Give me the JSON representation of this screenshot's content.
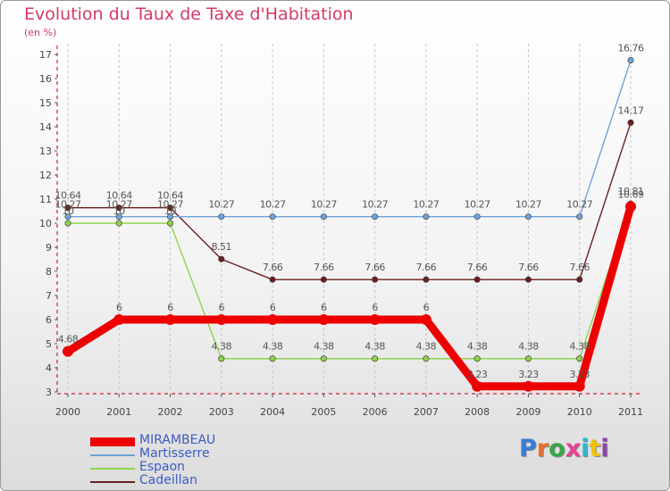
{
  "title": "Evolution du Taux de Taxe d'Habitation",
  "unit": "(en %)",
  "logo_text": "Proxiti",
  "chart_data": {
    "type": "line",
    "title": "Evolution du Taux de Taxe d'Habitation",
    "ylabel": "(en %)",
    "xlabel": "",
    "x": [
      2000,
      2001,
      2002,
      2003,
      2004,
      2005,
      2006,
      2007,
      2008,
      2009,
      2010,
      2011
    ],
    "ylim": [
      3,
      17
    ],
    "yticks": [
      3,
      4,
      5,
      6,
      7,
      8,
      9,
      10,
      11,
      12,
      13,
      14,
      15,
      16,
      17
    ],
    "grid": "vertical dashed",
    "legend_position": "bottom-left",
    "series": [
      {
        "name": "MIRAMBEAU",
        "color": "#ee0000",
        "values": [
          4.68,
          6,
          6,
          6,
          6,
          6,
          6,
          6,
          3.23,
          3.23,
          3.23,
          10.69
        ],
        "labels": [
          "4.68",
          "6",
          "6",
          "6",
          "6",
          "6",
          "6",
          "6",
          "3.23",
          "3.23",
          "3.23",
          "10.69"
        ]
      },
      {
        "name": "Martisserre",
        "color": "#6fa3d6",
        "values": [
          10.27,
          10.27,
          10.27,
          10.27,
          10.27,
          10.27,
          10.27,
          10.27,
          10.27,
          10.27,
          10.27,
          16.76
        ],
        "labels": [
          "10.27",
          "10.27",
          "10.27",
          "10.27",
          "10.27",
          "10.27",
          "10.27",
          "10.27",
          "10.27",
          "10.27",
          "10.27",
          "16.76"
        ]
      },
      {
        "name": "Espaon",
        "color": "#8ed34e",
        "values": [
          10,
          10,
          10,
          4.38,
          4.38,
          4.38,
          4.38,
          4.38,
          4.38,
          4.38,
          4.38,
          10.81
        ],
        "labels": [
          "10",
          "10",
          "10",
          "4.38",
          "4.38",
          "4.38",
          "4.38",
          "4.38",
          "4.38",
          "4.38",
          "4.38",
          "10.81"
        ]
      },
      {
        "name": "Cadeillan",
        "color": "#6b1f1f",
        "values": [
          10.64,
          10.64,
          10.64,
          8.51,
          7.66,
          7.66,
          7.66,
          7.66,
          7.66,
          7.66,
          7.66,
          14.17
        ],
        "labels": [
          "10.64",
          "10.64",
          "10.64",
          "8.51",
          "7.66",
          "7.66",
          "7.66",
          "7.66",
          "7.66",
          "7.66",
          "7.66",
          "14.17"
        ]
      }
    ]
  }
}
